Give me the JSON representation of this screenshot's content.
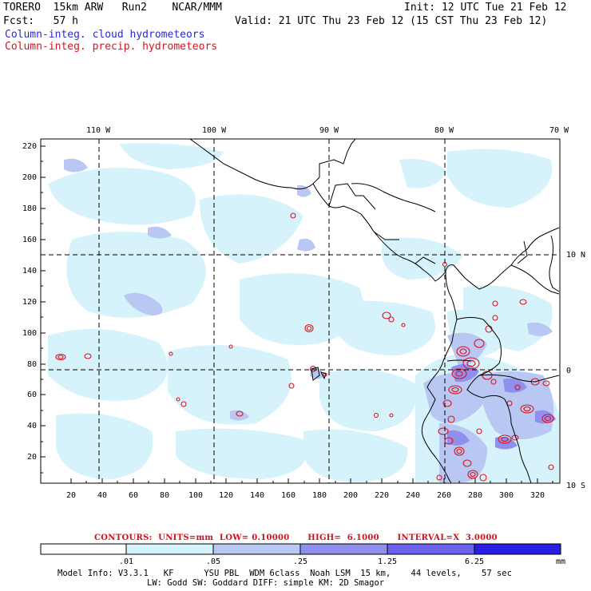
{
  "header": {
    "model": "TORERO  15km ARW   Run2    NCAR/MMM",
    "init": "Init: 12 UTC Tue 21 Feb 12",
    "fcst": "Fcst:   57 h",
    "valid": "Valid: 21 UTC Thu 23 Feb 12 (15 CST Thu 23 Feb 12)",
    "field_cloud": "Column-integ. cloud hydrometeors",
    "field_precip": "Column-integ. precip. hydrometeors"
  },
  "map": {
    "lon_labels": [
      "110 W",
      "100 W",
      "90 W",
      "80 W",
      "70 W"
    ],
    "lat_labels": [
      "10 N",
      "0",
      "10 S"
    ],
    "y_ticks": [
      "220",
      "200",
      "180",
      "160",
      "140",
      "120",
      "100",
      "80",
      "60",
      "40",
      "20"
    ],
    "x_ticks": [
      "20",
      "40",
      "60",
      "80",
      "100",
      "120",
      "140",
      "160",
      "180",
      "200",
      "220",
      "240",
      "260",
      "280",
      "300",
      "320"
    ]
  },
  "contours": {
    "text": "CONTOURS:  UNITS=mm  LOW= 0.10000      HIGH=  6.1000      INTERVAL=X  3.0000",
    "color": "#e0101a"
  },
  "colorbar": {
    "labels": [
      ".01",
      ".05",
      ".25",
      "1.25",
      "6.25"
    ],
    "unit": "mm",
    "colors": [
      "#ffffff",
      "#d6f2fb",
      "#b8c8f2",
      "#8f90ee",
      "#6a62ec",
      "#2a1ee6"
    ]
  },
  "model_info": {
    "line1": "Model Info: V3.3.1   KF      YSU PBL  WDM 6class  Noah LSM  15 km,    44 levels,    57 sec",
    "line2": "LW: Godd SW: Goddard DIFF: simple KM: 2D Smagor"
  }
}
